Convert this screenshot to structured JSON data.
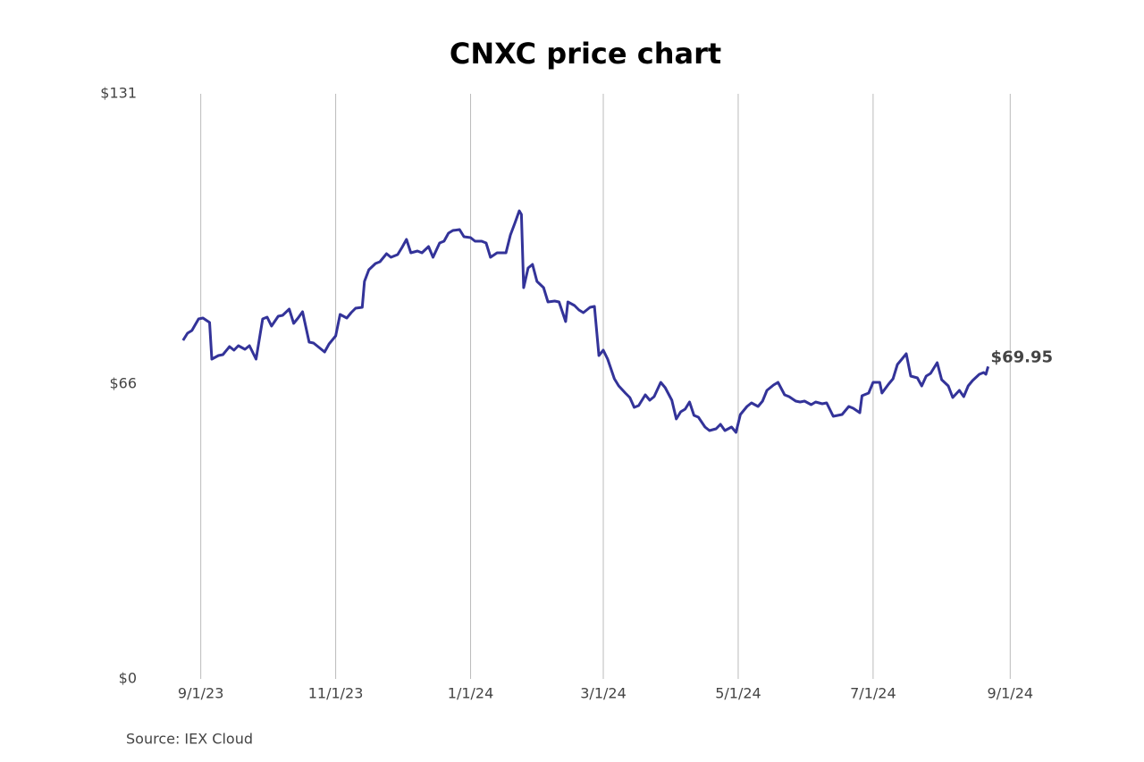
{
  "chart_data": {
    "type": "line",
    "title": "CNXC price chart",
    "source": "Source: IEX Cloud",
    "x": [
      "8/24/23",
      "8/26/23",
      "8/28/23",
      "8/31/23",
      "9/2/23",
      "9/5/23",
      "9/6/23",
      "9/9/23",
      "9/11/23",
      "9/14/23",
      "9/16/23",
      "9/18/23",
      "9/21/23",
      "9/23/23",
      "9/26/23",
      "9/29/23",
      "10/1/23",
      "10/3/23",
      "10/6/23",
      "10/8/23",
      "10/11/23",
      "10/13/23",
      "10/15/23",
      "10/17/23",
      "10/20/23",
      "10/22/23",
      "10/24/23",
      "10/27/23",
      "10/29/23",
      "11/1/23",
      "11/3/23",
      "11/6/23",
      "11/8/23",
      "11/10/23",
      "11/13/23",
      "11/14/23",
      "11/16/23",
      "11/19/23",
      "11/21/23",
      "11/24/23",
      "11/26/23",
      "11/29/23",
      "12/1/23",
      "12/3/23",
      "12/5/23",
      "12/8/23",
      "12/10/23",
      "12/13/23",
      "12/15/23",
      "12/18/23",
      "12/20/23",
      "12/22/23",
      "12/24/23",
      "12/27/23",
      "12/29/23",
      "1/1/24",
      "1/3/24",
      "1/6/24",
      "1/8/24",
      "1/10/24",
      "1/13/24",
      "1/15/24",
      "1/17/24",
      "1/19/24",
      "1/21/24",
      "1/23/24",
      "1/24/24",
      "1/25/24",
      "1/27/24",
      "1/29/24",
      "1/31/24",
      "2/3/24",
      "2/5/24",
      "2/8/24",
      "2/10/24",
      "2/13/24",
      "2/14/24",
      "2/17/24",
      "2/19/24",
      "2/21/24",
      "2/24/24",
      "2/26/24",
      "2/28/24",
      "3/1/24",
      "3/3/24",
      "3/6/24",
      "3/8/24",
      "3/11/24",
      "3/13/24",
      "3/15/24",
      "3/17/24",
      "3/20/24",
      "3/22/24",
      "3/24/24",
      "3/27/24",
      "3/29/24",
      "4/1/24",
      "4/3/24",
      "4/5/24",
      "4/7/24",
      "4/9/24",
      "4/11/24",
      "4/13/24",
      "4/16/24",
      "4/18/24",
      "4/21/24",
      "4/23/24",
      "4/25/24",
      "4/28/24",
      "4/30/24",
      "5/2/24",
      "5/5/24",
      "5/7/24",
      "5/10/24",
      "5/12/24",
      "5/14/24",
      "5/17/24",
      "5/19/24",
      "5/22/24",
      "5/24/24",
      "5/27/24",
      "5/29/24",
      "5/31/24",
      "6/3/24",
      "6/5/24",
      "6/8/24",
      "6/10/24",
      "6/13/24",
      "6/15/24",
      "6/17/24",
      "6/20/24",
      "6/22/24",
      "6/25/24",
      "6/26/24",
      "6/29/24",
      "7/1/24",
      "7/4/24",
      "7/5/24",
      "7/8/24",
      "7/10/24",
      "7/12/24",
      "7/14/24",
      "7/16/24",
      "7/18/24",
      "7/21/24",
      "7/23/24",
      "7/25/24",
      "7/27/24",
      "7/30/24",
      "8/1/24",
      "8/4/24",
      "8/6/24",
      "8/9/24",
      "8/11/24",
      "8/13/24",
      "8/15/24",
      "8/18/24",
      "8/20/24",
      "8/21/24",
      "8/22/24"
    ],
    "series": [
      {
        "name": "CNXC",
        "color": "#333399",
        "values": [
          75.8,
          77.4,
          78,
          80.6,
          80.8,
          79.8,
          71.6,
          72.4,
          72.6,
          74.4,
          73.6,
          74.6,
          73.8,
          74.6,
          71.6,
          80.6,
          81,
          79,
          81.2,
          81.4,
          82.8,
          79.6,
          80.8,
          82.2,
          75.4,
          75.2,
          74.4,
          73.2,
          75,
          76.8,
          81.6,
          80.8,
          82,
          83,
          83.2,
          89,
          91.6,
          93,
          93.4,
          95.2,
          94.4,
          95,
          96.6,
          98.4,
          95.4,
          95.8,
          95.4,
          96.8,
          94.4,
          97.6,
          98,
          99.8,
          100.4,
          100.6,
          99,
          98.8,
          98,
          98,
          97.6,
          94.4,
          95.4,
          95.4,
          95.4,
          99.4,
          102,
          104.8,
          104,
          87.6,
          92,
          92.8,
          89,
          87.6,
          84.4,
          84.6,
          84.4,
          80,
          84.4,
          83.6,
          82.6,
          82,
          83.2,
          83.4,
          72.4,
          73.6,
          71.6,
          67.2,
          65.6,
          64,
          63,
          60.8,
          61.2,
          63.6,
          62.4,
          63.2,
          66.4,
          65.2,
          62.4,
          58.2,
          59.8,
          60.4,
          62,
          59,
          58.6,
          56.4,
          55.6,
          56,
          57,
          55.6,
          56.4,
          55.2,
          59.2,
          61,
          61.8,
          61,
          62.2,
          64.6,
          65.8,
          66.4,
          63.6,
          63.2,
          62.2,
          62,
          62.2,
          61.4,
          62,
          61.6,
          61.8,
          58.8,
          59,
          59.2,
          61,
          60.6,
          59.6,
          63.4,
          64,
          66.4,
          66.4,
          64,
          66,
          67.2,
          70.4,
          71.6,
          72.8,
          67.8,
          67.4,
          65.6,
          67.8,
          68.4,
          70.8,
          67,
          65.6,
          63,
          64.6,
          63.2,
          65.6,
          66.8,
          68.2,
          68.6,
          68.2,
          69.95
        ]
      }
    ],
    "annotation": {
      "label": "$69.95",
      "value": 69.95
    },
    "xlim": [
      "8/18/23",
      "9/13/24"
    ],
    "xticks": [
      "9/1/23",
      "11/1/23",
      "1/1/24",
      "3/1/24",
      "5/1/24",
      "7/1/24",
      "9/1/24"
    ],
    "ylim": [
      0,
      131
    ],
    "yticks": [
      {
        "value": 0,
        "label": "$0"
      },
      {
        "value": 66,
        "label": "$66"
      },
      {
        "value": 131,
        "label": "$131"
      }
    ],
    "xgrid": true
  }
}
